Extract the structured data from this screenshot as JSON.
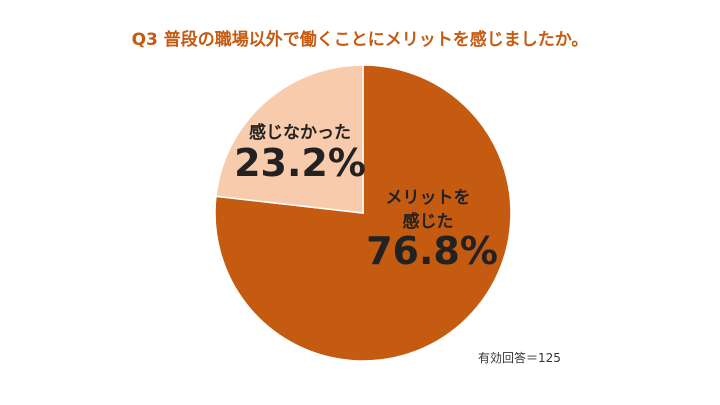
{
  "chart_data": {
    "type": "pie",
    "title": "Q3 普段の職場以外で働くことにメリットを感じましたか。",
    "slices": [
      {
        "label_lines": [
          "メリットを",
          "感じた"
        ],
        "value": 76.8,
        "value_label": "76.8%",
        "color": "#c55a11"
      },
      {
        "label_lines": [
          "感じなかった"
        ],
        "value": 23.2,
        "value_label": "23.2%",
        "color": "#f8cbad"
      }
    ],
    "note": "有効回答＝125"
  },
  "colors": {
    "title": "#c55a11",
    "text": "#222222"
  }
}
